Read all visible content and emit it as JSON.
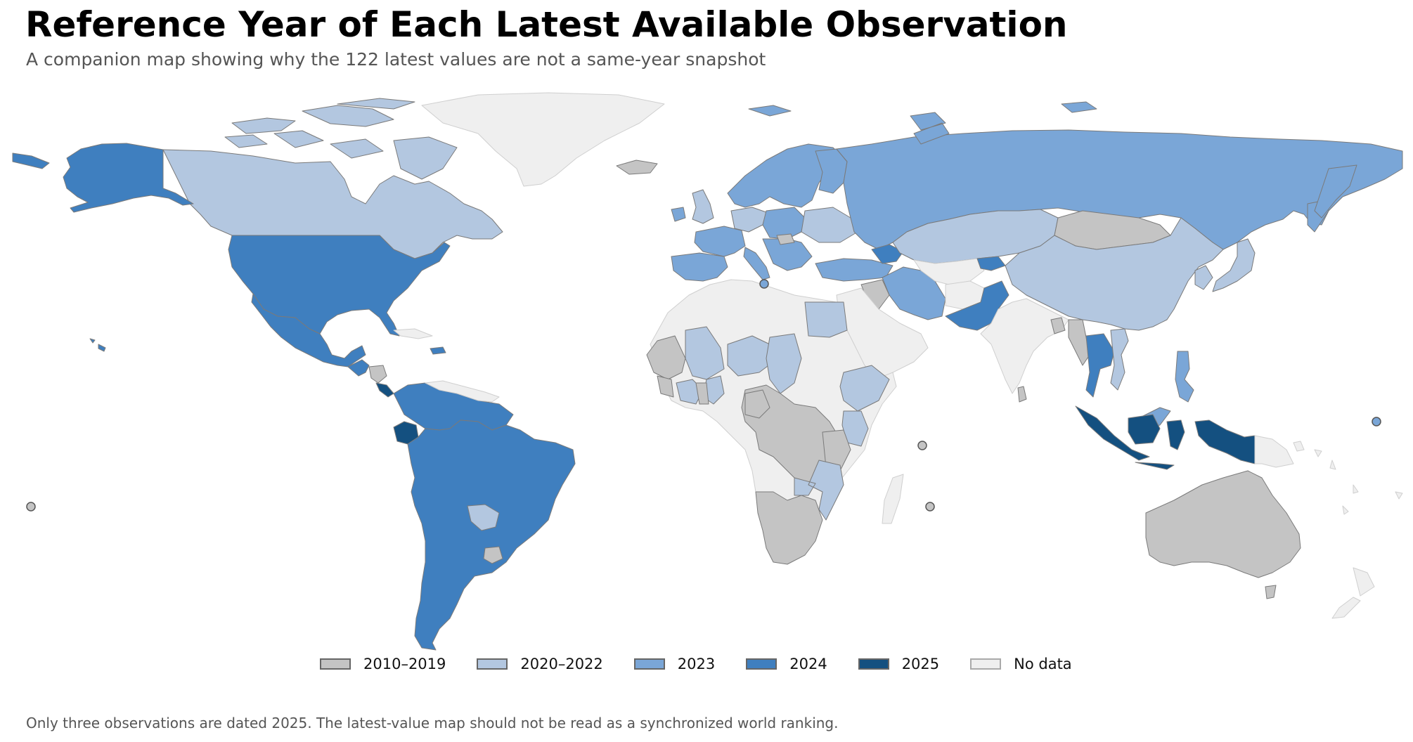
{
  "title": "Reference Year of Each Latest Available Observation",
  "subtitle": "A companion map showing why the 122 latest values are not a same-year snapshot",
  "footnote": "Only three observations are dated 2025. The latest-value map should not be read as a synchronized world ranking.",
  "colors": {
    "y2010_2019": "#c4c4c4",
    "y2020_2022": "#b3c7e0",
    "y2023": "#7aa6d7",
    "y2024": "#3f7fbf",
    "y2025": "#145080",
    "no_data": "#efefef",
    "border": "#7a7a7a"
  },
  "legend": [
    {
      "label": "2010–2019",
      "color": "#c4c4c4"
    },
    {
      "label": "2020–2022",
      "color": "#b3c7e0"
    },
    {
      "label": "2023",
      "color": "#7aa6d7"
    },
    {
      "label": "2024",
      "color": "#3f7fbf"
    },
    {
      "label": "2025",
      "color": "#145080"
    },
    {
      "label": "No data",
      "color": "#efefef"
    }
  ]
}
